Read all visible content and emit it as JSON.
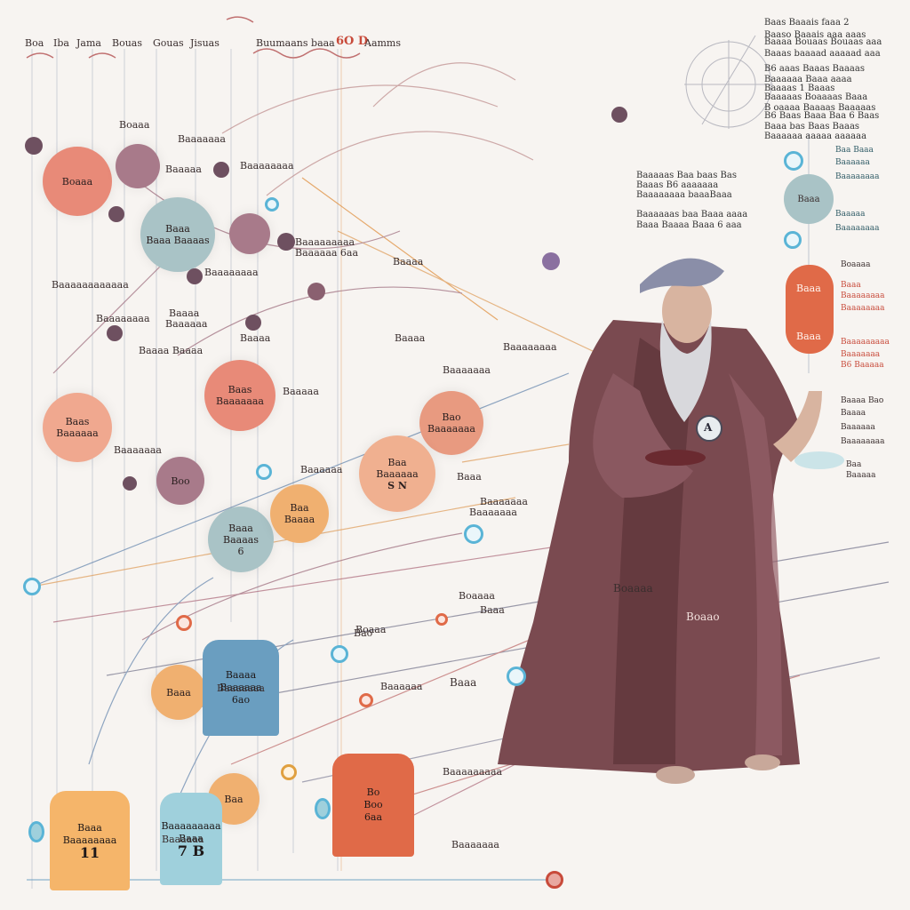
{
  "header": {
    "labels": [
      "Boa",
      "Iba",
      "Jama",
      "Bouas",
      "Gouas",
      "Jisuas",
      "Buumaans baaa",
      "6O D",
      "Aamms"
    ]
  },
  "top_right_list": [
    "Baas Baaais faaa 2",
    "Baaso Baaais aaa aaas",
    "Baaaa Bouaas Bouaas aaa",
    "Baaas baaaad aaaaad aaa",
    "B6 aaas Baaas Baaaas",
    "Baaaaaa Baaa aaaa",
    "Baaaas 1 Baaas",
    "Baaaaas Boaaaas Baaa",
    "B oaaaa Baaaas Baaaaas",
    "B6 Baas Baaa Baa 6 Baas",
    "Baaa bas Baas Baaas",
    "Baaaaaa aaaaa aaaaaa"
  ],
  "mid_text_block": [
    "Baaaaas Baa baas Bas",
    "Baaas B6 aaaaaaa",
    "Baaaaaaaa baaaBaaa",
    "Baaaaaas baa Baaa aaaa",
    "Baaa Baaaa Baaa 6 aaa"
  ],
  "nodes": [
    {
      "id": "n1",
      "lines": [
        "Boaaa"
      ],
      "color": "#e88a78"
    },
    {
      "id": "n2",
      "lines": [
        "Baaa",
        "Baaa Baaaas"
      ],
      "color": "#a9c3c6"
    },
    {
      "id": "n3",
      "lines": [
        "Baas",
        "Baaaaaa"
      ],
      "color": "#f0a88f"
    },
    {
      "id": "n4",
      "lines": [
        "Baas",
        "Baaaaaaa"
      ],
      "color": "#e88a78"
    },
    {
      "id": "n5",
      "lines": [
        "Boo"
      ],
      "color": "#a87a8a"
    },
    {
      "id": "n6",
      "lines": [
        "Baaa",
        "Baaaas",
        "6"
      ],
      "color": "#a9c3c6"
    },
    {
      "id": "n7",
      "lines": [
        "Baa",
        "Baaaa"
      ],
      "color": "#f0b070"
    },
    {
      "id": "n8",
      "lines": [
        "Bao",
        "Baaaaaaa"
      ],
      "color": "#e89a80"
    },
    {
      "id": "n9",
      "lines": [
        "Baa",
        "Baaaaaa",
        "S N"
      ],
      "color": "#f0b090"
    },
    {
      "id": "n10",
      "lines": [
        "Baaa"
      ],
      "color": "#f0b070"
    },
    {
      "id": "n11",
      "lines": [
        "Baa"
      ],
      "color": "#f0b070"
    }
  ],
  "labels": [
    {
      "id": "l1",
      "text": "Boaaa"
    },
    {
      "id": "l2",
      "text": "Baaaaaaa"
    },
    {
      "id": "l3",
      "text": "Baaaaa"
    },
    {
      "id": "l4",
      "text": "Baaaaaaaa"
    },
    {
      "id": "l5",
      "text": "Baaaaaaaaa"
    },
    {
      "id": "l6",
      "text": "Baaaaaa 6aa"
    },
    {
      "id": "l7",
      "text": "Baaaaaaaa"
    },
    {
      "id": "l8",
      "text": "Baaaaaaaaaaaa"
    },
    {
      "id": "l9",
      "text": "Baaaa"
    },
    {
      "id": "l10",
      "text": "Baaaaaa"
    },
    {
      "id": "l11",
      "text": "Baaaaaaaa"
    },
    {
      "id": "l12",
      "text": "Baaaa"
    },
    {
      "id": "l13",
      "text": "Baaaa Baaaa"
    },
    {
      "id": "l14",
      "text": "Baaaa"
    },
    {
      "id": "l15",
      "text": "Baaaaaaa"
    },
    {
      "id": "l16",
      "text": "Baaaaa"
    },
    {
      "id": "l17",
      "text": "Baaaaaaa"
    },
    {
      "id": "l18",
      "text": "Baaaaaa"
    },
    {
      "id": "l19",
      "text": "Baaa"
    },
    {
      "id": "l20",
      "text": "Baaaaaaa"
    },
    {
      "id": "l21",
      "text": "Boaaaa"
    },
    {
      "id": "l22",
      "text": "Boaaa"
    },
    {
      "id": "l23",
      "text": "Baaaaaa"
    },
    {
      "id": "l24",
      "text": "Baaaaaaaaa"
    },
    {
      "id": "l25",
      "text": "Baaaaaaa"
    },
    {
      "id": "l26",
      "text": "Baaaa"
    },
    {
      "id": "l27",
      "text": "Baaaaaaaa"
    }
  ],
  "blocks": [
    {
      "id": "b1",
      "lines": [
        "Baaaa",
        "Baaaaaa",
        "6ao"
      ],
      "color": "#6a9ec0"
    },
    {
      "id": "b2",
      "lines": [
        "Baaa",
        "Baaaaaaaa",
        "11"
      ],
      "color": "#f5b56a"
    },
    {
      "id": "b3",
      "lines": [
        "Baaaaaaaaa",
        "Baaa",
        "7 B"
      ],
      "color": "#9fd0dc"
    },
    {
      "id": "b4",
      "lines": [
        "Bo",
        "Boo",
        "6aa"
      ],
      "color": "#e06a48"
    }
  ],
  "right_legend": [
    {
      "id": "r1",
      "lines": [
        "Baa Baaa",
        "Baaaaaa",
        "Baaaaaaaa"
      ]
    },
    {
      "id": "r2",
      "lines": [
        "Baaaaa",
        "Baaaaaaaa"
      ]
    },
    {
      "id": "r3",
      "lines": [
        "Baaa",
        "Baaaaaaaa",
        "Baaaaaaaa"
      ]
    },
    {
      "id": "r4",
      "lines": [
        "Baaaaaaaaa",
        "Baaaaaaa",
        "B6 Baaaaa"
      ]
    },
    {
      "id": "r5",
      "lines": [
        "Baaaa Bao",
        "Baaaa",
        "Baaaaaa",
        "Baaaaaaaa",
        "Baa",
        "Baaaaa"
      ]
    }
  ],
  "pill": {
    "top": "Baaa",
    "bottom": "Baaa",
    "mid": "Boaaaa"
  },
  "blue_pill": "Baaa",
  "figure_label_1": "Boaaaa",
  "figure_label_2": "Boaao",
  "lower_labels": {
    "a": "Baaa",
    "b": "Baaaaaa",
    "c": "Baaaaaaa",
    "d": "Bao",
    "e": "Baaa",
    "f": "Baaaaaaa"
  },
  "orb_letter": "A",
  "colors": {
    "salmon": "#e88a78",
    "teal": "#a9c3c6",
    "orange": "#f0b070",
    "blue": "#5ab4d6",
    "plum": "#6e5060",
    "robe": "#7a4a50",
    "red": "#c84a3a"
  }
}
